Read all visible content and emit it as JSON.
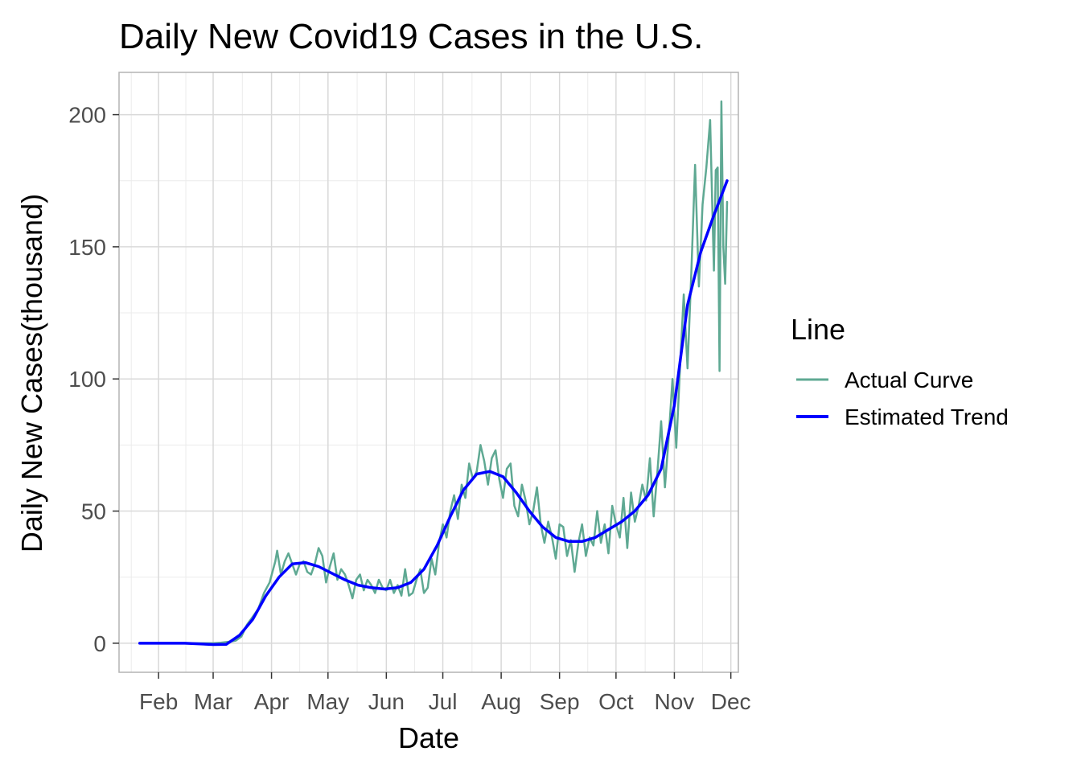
{
  "chart_data": {
    "type": "line",
    "title": "Daily New Covid19 Cases in the U.S.",
    "xlabel": "Date",
    "ylabel": "Daily New Cases(thousand)",
    "x_tick_labels": [
      "Feb",
      "Mar",
      "Apr",
      "May",
      "Jun",
      "Jul",
      "Aug",
      "Sep",
      "Oct",
      "Nov",
      "Dec"
    ],
    "x_tick_dates": [
      "2020-02-01",
      "2020-03-01",
      "2020-04-01",
      "2020-05-01",
      "2020-06-01",
      "2020-07-01",
      "2020-08-01",
      "2020-09-01",
      "2020-10-01",
      "2020-11-01",
      "2020-12-01"
    ],
    "y_ticks": [
      0,
      50,
      100,
      150,
      200
    ],
    "xlim": [
      "2020-01-11",
      "2020-12-05"
    ],
    "ylim": [
      -11,
      216
    ],
    "grid": true,
    "legend": {
      "title": "Line",
      "position": "right",
      "entries": [
        "Actual Curve",
        "Estimated Trend"
      ]
    },
    "series": [
      {
        "name": "Actual Curve",
        "color": "#5fa993",
        "points": [
          [
            "2020-01-22",
            0
          ],
          [
            "2020-02-15",
            0
          ],
          [
            "2020-03-01",
            0
          ],
          [
            "2020-03-05",
            0.2
          ],
          [
            "2020-03-10",
            0.6
          ],
          [
            "2020-03-13",
            1
          ],
          [
            "2020-03-16",
            2.5
          ],
          [
            "2020-03-19",
            7
          ],
          [
            "2020-03-22",
            10
          ],
          [
            "2020-03-25",
            13
          ],
          [
            "2020-03-28",
            19
          ],
          [
            "2020-03-31",
            23
          ],
          [
            "2020-04-03",
            31
          ],
          [
            "2020-04-04",
            35
          ],
          [
            "2020-04-06",
            26
          ],
          [
            "2020-04-08",
            31
          ],
          [
            "2020-04-10",
            34
          ],
          [
            "2020-04-12",
            30
          ],
          [
            "2020-04-14",
            26
          ],
          [
            "2020-04-16",
            30
          ],
          [
            "2020-04-18",
            31
          ],
          [
            "2020-04-20",
            27
          ],
          [
            "2020-04-22",
            26
          ],
          [
            "2020-04-24",
            30
          ],
          [
            "2020-04-26",
            36
          ],
          [
            "2020-04-28",
            33
          ],
          [
            "2020-04-30",
            23
          ],
          [
            "2020-05-02",
            29
          ],
          [
            "2020-05-04",
            34
          ],
          [
            "2020-05-06",
            24
          ],
          [
            "2020-05-08",
            28
          ],
          [
            "2020-05-10",
            26
          ],
          [
            "2020-05-12",
            22
          ],
          [
            "2020-05-14",
            17
          ],
          [
            "2020-05-16",
            24
          ],
          [
            "2020-05-18",
            26
          ],
          [
            "2020-05-20",
            20
          ],
          [
            "2020-05-22",
            24
          ],
          [
            "2020-05-24",
            22
          ],
          [
            "2020-05-26",
            19
          ],
          [
            "2020-05-28",
            24
          ],
          [
            "2020-05-30",
            21
          ],
          [
            "2020-06-01",
            20
          ],
          [
            "2020-06-03",
            24
          ],
          [
            "2020-06-05",
            19
          ],
          [
            "2020-06-07",
            22
          ],
          [
            "2020-06-09",
            18
          ],
          [
            "2020-06-11",
            28
          ],
          [
            "2020-06-13",
            18
          ],
          [
            "2020-06-15",
            19
          ],
          [
            "2020-06-17",
            24
          ],
          [
            "2020-06-19",
            28
          ],
          [
            "2020-06-21",
            19
          ],
          [
            "2020-06-23",
            21
          ],
          [
            "2020-06-25",
            32
          ],
          [
            "2020-06-27",
            26
          ],
          [
            "2020-06-29",
            38
          ],
          [
            "2020-07-01",
            45
          ],
          [
            "2020-07-03",
            40
          ],
          [
            "2020-07-05",
            50
          ],
          [
            "2020-07-07",
            56
          ],
          [
            "2020-07-09",
            47
          ],
          [
            "2020-07-11",
            60
          ],
          [
            "2020-07-13",
            55
          ],
          [
            "2020-07-15",
            68
          ],
          [
            "2020-07-17",
            62
          ],
          [
            "2020-07-19",
            65
          ],
          [
            "2020-07-21",
            75
          ],
          [
            "2020-07-23",
            69
          ],
          [
            "2020-07-25",
            60
          ],
          [
            "2020-07-27",
            70
          ],
          [
            "2020-07-29",
            73
          ],
          [
            "2020-07-31",
            62
          ],
          [
            "2020-08-02",
            55
          ],
          [
            "2020-08-04",
            66
          ],
          [
            "2020-08-06",
            68
          ],
          [
            "2020-08-08",
            52
          ],
          [
            "2020-08-10",
            48
          ],
          [
            "2020-08-12",
            60
          ],
          [
            "2020-08-14",
            54
          ],
          [
            "2020-08-16",
            45
          ],
          [
            "2020-08-18",
            50
          ],
          [
            "2020-08-20",
            59
          ],
          [
            "2020-08-22",
            45
          ],
          [
            "2020-08-24",
            38
          ],
          [
            "2020-08-26",
            46
          ],
          [
            "2020-08-28",
            40
          ],
          [
            "2020-08-30",
            32
          ],
          [
            "2020-09-01",
            45
          ],
          [
            "2020-09-03",
            44
          ],
          [
            "2020-09-05",
            33
          ],
          [
            "2020-09-07",
            39
          ],
          [
            "2020-09-09",
            27
          ],
          [
            "2020-09-11",
            38
          ],
          [
            "2020-09-13",
            45
          ],
          [
            "2020-09-15",
            33
          ],
          [
            "2020-09-17",
            40
          ],
          [
            "2020-09-19",
            37
          ],
          [
            "2020-09-21",
            50
          ],
          [
            "2020-09-23",
            38
          ],
          [
            "2020-09-25",
            45
          ],
          [
            "2020-09-27",
            34
          ],
          [
            "2020-09-29",
            52
          ],
          [
            "2020-10-01",
            45
          ],
          [
            "2020-10-03",
            40
          ],
          [
            "2020-10-05",
            55
          ],
          [
            "2020-10-07",
            36
          ],
          [
            "2020-10-09",
            57
          ],
          [
            "2020-10-11",
            46
          ],
          [
            "2020-10-13",
            52
          ],
          [
            "2020-10-15",
            60
          ],
          [
            "2020-10-17",
            54
          ],
          [
            "2020-10-19",
            70
          ],
          [
            "2020-10-21",
            48
          ],
          [
            "2020-10-23",
            65
          ],
          [
            "2020-10-25",
            84
          ],
          [
            "2020-10-27",
            59
          ],
          [
            "2020-10-29",
            78
          ],
          [
            "2020-10-31",
            100
          ],
          [
            "2020-11-02",
            74
          ],
          [
            "2020-11-04",
            104
          ],
          [
            "2020-11-06",
            132
          ],
          [
            "2020-11-08",
            104
          ],
          [
            "2020-11-10",
            140
          ],
          [
            "2020-11-12",
            181
          ],
          [
            "2020-11-14",
            135
          ],
          [
            "2020-11-16",
            166
          ],
          [
            "2020-11-18",
            180
          ],
          [
            "2020-11-20",
            198
          ],
          [
            "2020-11-22",
            141
          ],
          [
            "2020-11-23",
            179
          ],
          [
            "2020-11-24",
            180
          ],
          [
            "2020-11-25",
            103
          ],
          [
            "2020-11-26",
            205
          ],
          [
            "2020-11-27",
            150
          ],
          [
            "2020-11-28",
            136
          ],
          [
            "2020-11-29",
            167
          ]
        ]
      },
      {
        "name": "Estimated Trend",
        "color": "#0000ff",
        "points": [
          [
            "2020-01-22",
            0
          ],
          [
            "2020-02-15",
            0
          ],
          [
            "2020-03-01",
            -0.5
          ],
          [
            "2020-03-08",
            -0.4
          ],
          [
            "2020-03-15",
            3
          ],
          [
            "2020-03-22",
            9
          ],
          [
            "2020-03-29",
            18
          ],
          [
            "2020-04-05",
            25
          ],
          [
            "2020-04-12",
            30
          ],
          [
            "2020-04-19",
            30.5
          ],
          [
            "2020-04-26",
            29
          ],
          [
            "2020-05-03",
            26.5
          ],
          [
            "2020-05-10",
            24
          ],
          [
            "2020-05-17",
            22
          ],
          [
            "2020-05-24",
            21
          ],
          [
            "2020-05-31",
            20.5
          ],
          [
            "2020-06-07",
            21
          ],
          [
            "2020-06-14",
            23
          ],
          [
            "2020-06-21",
            28
          ],
          [
            "2020-06-28",
            37
          ],
          [
            "2020-07-05",
            48
          ],
          [
            "2020-07-12",
            58
          ],
          [
            "2020-07-19",
            64
          ],
          [
            "2020-07-26",
            65
          ],
          [
            "2020-08-02",
            63
          ],
          [
            "2020-08-09",
            57
          ],
          [
            "2020-08-16",
            50
          ],
          [
            "2020-08-23",
            44
          ],
          [
            "2020-08-30",
            40
          ],
          [
            "2020-09-06",
            38.5
          ],
          [
            "2020-09-13",
            38.5
          ],
          [
            "2020-09-20",
            40
          ],
          [
            "2020-09-27",
            43
          ],
          [
            "2020-10-04",
            46
          ],
          [
            "2020-10-11",
            50
          ],
          [
            "2020-10-18",
            56
          ],
          [
            "2020-10-25",
            66
          ],
          [
            "2020-11-01",
            90
          ],
          [
            "2020-11-08",
            128
          ],
          [
            "2020-11-15",
            148
          ],
          [
            "2020-11-22",
            162
          ],
          [
            "2020-11-29",
            175
          ]
        ]
      }
    ]
  }
}
